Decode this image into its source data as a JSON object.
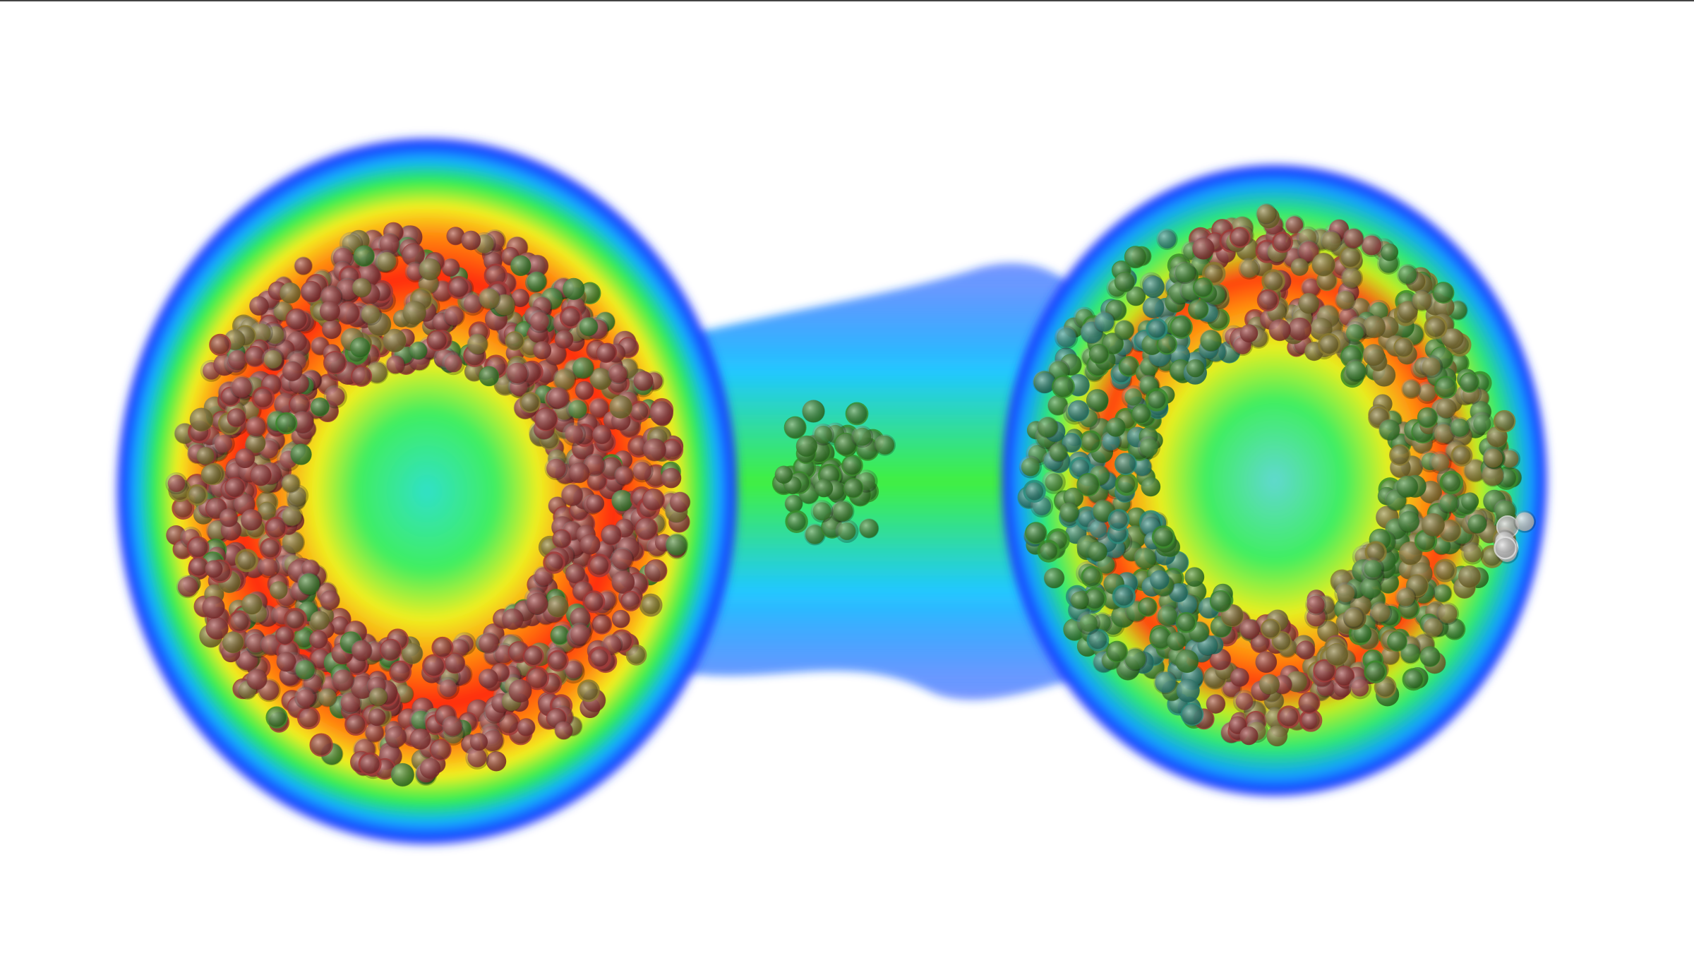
{
  "colors": {
    "background": "#ffffff",
    "density_outer": "#1a3cff",
    "density_mid": "#22e0d0",
    "density_green": "#22ee22",
    "density_yellow": "#ffee00",
    "density_orange": "#ff8800",
    "density_high": "#ff2010",
    "sphere_red": "#a03a38",
    "sphere_olive": "#8a7a30",
    "sphere_green": "#3a8a2a",
    "sphere_teal": "#2a8a7a",
    "sphere_grey": "#dddddd"
  }
}
